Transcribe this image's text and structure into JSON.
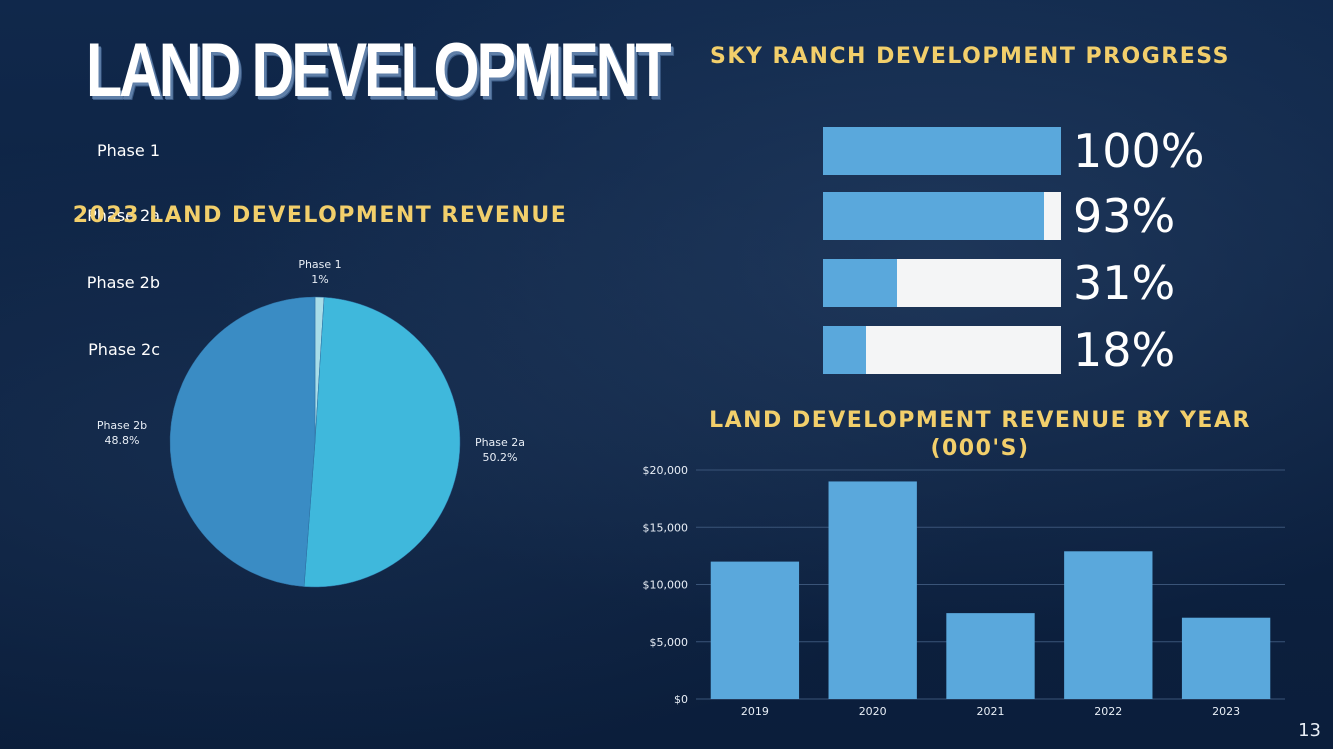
{
  "page": {
    "title": "LAND DEVELOPMENT",
    "page_number": "13"
  },
  "progress": {
    "title": "SKY RANCH DEVELOPMENT PROGRESS",
    "items": [
      {
        "label": "Phase 1",
        "percent": 100,
        "display": "100%"
      },
      {
        "label": "Phase 2a",
        "percent": 93,
        "display": "93%"
      },
      {
        "label": "Phase  2b",
        "percent": 31,
        "display": "31%"
      },
      {
        "label": "Phase  2c",
        "percent": 18,
        "display": "18%"
      }
    ],
    "fill_color": "#5aa8dc",
    "track_color": "#f4f5f6"
  },
  "chart_data": [
    {
      "type": "pie",
      "title": "2023 LAND DEVELOPMENT REVENUE",
      "slices": [
        {
          "label": "Phase 1",
          "value": 1,
          "display": "1%",
          "color": "#a8dde8"
        },
        {
          "label": "Phase 2a",
          "value": 50.2,
          "display": "50.2%",
          "color": "#3fb8dc"
        },
        {
          "label": "Phase 2b",
          "value": 48.8,
          "display": "48.8%",
          "color": "#3a8cc4"
        }
      ]
    },
    {
      "type": "bar",
      "title": "LAND DEVELOPMENT REVENUE BY YEAR (000'S)",
      "title_lines": [
        "LAND DEVELOPMENT REVENUE BY YEAR",
        "(000'S)"
      ],
      "categories": [
        "2019",
        "2020",
        "2021",
        "2022",
        "2023"
      ],
      "values": [
        12000,
        19000,
        7500,
        12900,
        7100
      ],
      "ylim": [
        0,
        20000
      ],
      "yticks": [
        0,
        5000,
        10000,
        15000,
        20000
      ],
      "ytick_labels": [
        "$0",
        "$5,000",
        "$10,000",
        "$15,000",
        "$20,000"
      ],
      "xlabel": "",
      "ylabel": "",
      "grid": true,
      "bar_color": "#5aa8dc"
    }
  ]
}
